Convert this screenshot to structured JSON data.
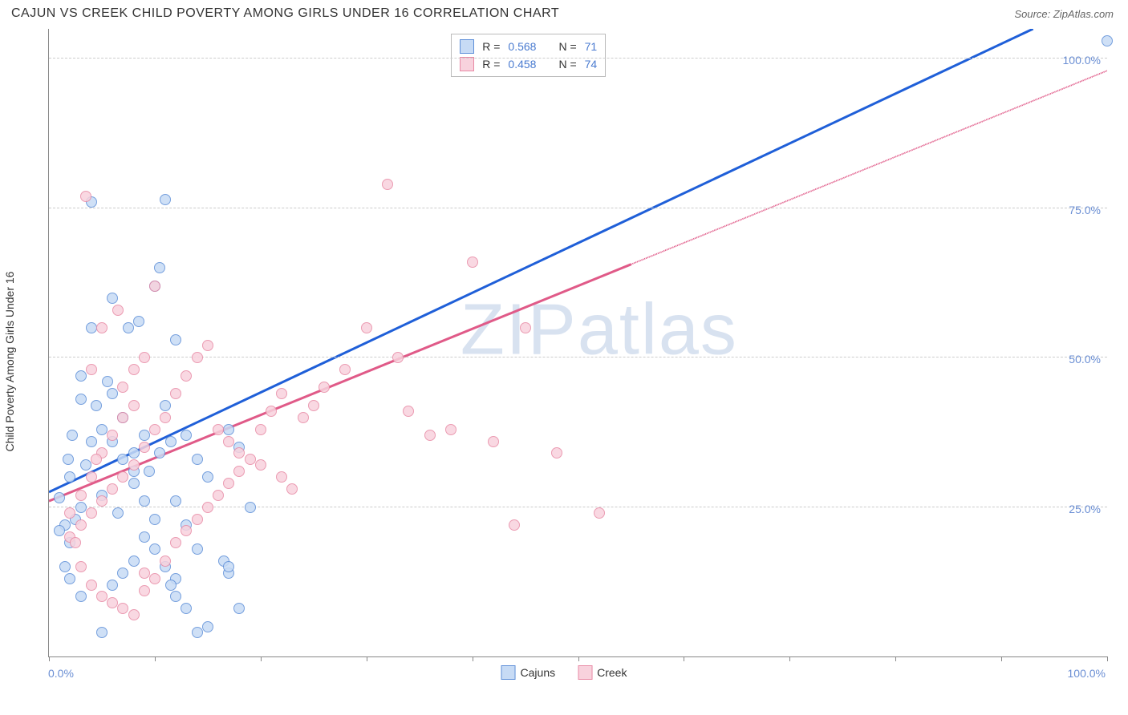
{
  "header": {
    "title": "CAJUN VS CREEK CHILD POVERTY AMONG GIRLS UNDER 16 CORRELATION CHART",
    "source": "Source: ZipAtlas.com"
  },
  "watermark": "ZIPatlas",
  "chart": {
    "type": "scatter",
    "ylabel": "Child Poverty Among Girls Under 16",
    "xlim": [
      0,
      100
    ],
    "ylim": [
      0,
      105
    ],
    "y_ticks": [
      25,
      50,
      75,
      100
    ],
    "y_tick_labels": [
      "25.0%",
      "50.0%",
      "75.0%",
      "100.0%"
    ],
    "x_tick_positions": [
      0,
      10,
      20,
      30,
      40,
      50,
      60,
      70,
      80,
      90,
      100
    ],
    "x_axis_left_label": "0.0%",
    "x_axis_right_label": "100.0%",
    "grid_color": "#cccccc",
    "background_color": "#ffffff",
    "marker_radius": 7,
    "marker_stroke_width": 1.3,
    "series": [
      {
        "name": "Cajuns",
        "fill": "#c7dbf5",
        "stroke": "#5e8fd8",
        "line_color": "#1f5fd8",
        "R": "0.568",
        "N": "71",
        "trend": {
          "x1": 0,
          "y1": 27.5,
          "x2": 93,
          "y2": 105,
          "dashed_after_x": null
        },
        "points": [
          [
            100,
            103
          ],
          [
            1.5,
            22
          ],
          [
            2,
            19
          ],
          [
            2.5,
            23
          ],
          [
            1,
            21
          ],
          [
            3,
            25
          ],
          [
            1,
            26.5
          ],
          [
            4,
            36
          ],
          [
            5,
            38
          ],
          [
            4.5,
            42
          ],
          [
            6,
            44
          ],
          [
            5.5,
            46
          ],
          [
            3,
            47
          ],
          [
            7,
            40
          ],
          [
            8,
            34
          ],
          [
            9,
            37
          ],
          [
            7.5,
            55
          ],
          [
            8.5,
            56
          ],
          [
            10,
            62
          ],
          [
            4,
            76
          ],
          [
            11,
            76.5
          ],
          [
            10.5,
            65
          ],
          [
            12,
            53
          ],
          [
            11,
            42
          ],
          [
            13,
            37
          ],
          [
            14,
            33
          ],
          [
            15,
            30
          ],
          [
            12,
            26
          ],
          [
            13,
            22
          ],
          [
            14,
            18
          ],
          [
            16.5,
            16
          ],
          [
            17,
            14
          ],
          [
            18,
            8
          ],
          [
            5,
            4
          ],
          [
            3,
            10
          ],
          [
            6,
            12
          ],
          [
            7,
            14
          ],
          [
            8,
            16
          ],
          [
            2,
            30
          ],
          [
            3.5,
            32
          ],
          [
            5,
            27
          ],
          [
            6.5,
            24
          ],
          [
            9,
            20
          ],
          [
            10,
            18
          ],
          [
            11,
            15
          ],
          [
            12,
            13
          ],
          [
            8,
            29
          ],
          [
            9.5,
            31
          ],
          [
            10.5,
            34
          ],
          [
            11.5,
            36
          ],
          [
            6,
            60
          ],
          [
            4,
            55
          ],
          [
            3,
            43
          ],
          [
            2.2,
            37
          ],
          [
            1.8,
            33
          ],
          [
            14,
            4
          ],
          [
            15,
            5
          ],
          [
            13,
            8
          ],
          [
            12,
            10
          ],
          [
            11.5,
            12
          ],
          [
            10,
            23
          ],
          [
            9,
            26
          ],
          [
            8,
            31
          ],
          [
            7,
            33
          ],
          [
            6,
            36
          ],
          [
            17,
            38
          ],
          [
            18,
            35
          ],
          [
            17,
            15
          ],
          [
            19,
            25
          ],
          [
            1.5,
            15
          ],
          [
            2,
            13
          ]
        ]
      },
      {
        "name": "Creek",
        "fill": "#f8d2dd",
        "stroke": "#e88aa5",
        "line_color": "#e05a88",
        "R": "0.458",
        "N": "74",
        "trend": {
          "x1": 0,
          "y1": 26,
          "x2": 100,
          "y2": 98,
          "dashed_after_x": 55
        },
        "points": [
          [
            2,
            20
          ],
          [
            3,
            22
          ],
          [
            4,
            24
          ],
          [
            5,
            26
          ],
          [
            6,
            28
          ],
          [
            7,
            30
          ],
          [
            8,
            32
          ],
          [
            9,
            35
          ],
          [
            10,
            38
          ],
          [
            11,
            40
          ],
          [
            12,
            44
          ],
          [
            13,
            47
          ],
          [
            14,
            50
          ],
          [
            15,
            52
          ],
          [
            16,
            38
          ],
          [
            17,
            36
          ],
          [
            18,
            34
          ],
          [
            19,
            33
          ],
          [
            20,
            32
          ],
          [
            22,
            30
          ],
          [
            23,
            28
          ],
          [
            24,
            40
          ],
          [
            25,
            42
          ],
          [
            26,
            45
          ],
          [
            28,
            48
          ],
          [
            30,
            55
          ],
          [
            32,
            79
          ],
          [
            33,
            50
          ],
          [
            34,
            41
          ],
          [
            36,
            37
          ],
          [
            38,
            38
          ],
          [
            40,
            66
          ],
          [
            42,
            36
          ],
          [
            45,
            55
          ],
          [
            48,
            34
          ],
          [
            52,
            24
          ],
          [
            44,
            22
          ],
          [
            3.5,
            77
          ],
          [
            4,
            48
          ],
          [
            5,
            55
          ],
          [
            6.5,
            58
          ],
          [
            2.5,
            19
          ],
          [
            3,
            15
          ],
          [
            4,
            12
          ],
          [
            5,
            10
          ],
          [
            6,
            9
          ],
          [
            7,
            8
          ],
          [
            8,
            7
          ],
          [
            9,
            11
          ],
          [
            10,
            13
          ],
          [
            11,
            16
          ],
          [
            12,
            19
          ],
          [
            13,
            21
          ],
          [
            14,
            23
          ],
          [
            15,
            25
          ],
          [
            16,
            27
          ],
          [
            17,
            29
          ],
          [
            18,
            31
          ],
          [
            7,
            45
          ],
          [
            8,
            48
          ],
          [
            9,
            50
          ],
          [
            10,
            62
          ],
          [
            5,
            34
          ],
          [
            6,
            37
          ],
          [
            7,
            40
          ],
          [
            8,
            42
          ],
          [
            2,
            24
          ],
          [
            3,
            27
          ],
          [
            4,
            30
          ],
          [
            4.5,
            33
          ],
          [
            20,
            38
          ],
          [
            21,
            41
          ],
          [
            22,
            44
          ],
          [
            9,
            14
          ]
        ]
      }
    ]
  },
  "legend": {
    "items": [
      {
        "label": "Cajuns",
        "fill": "#c7dbf5",
        "stroke": "#5e8fd8"
      },
      {
        "label": "Creek",
        "fill": "#f8d2dd",
        "stroke": "#e88aa5"
      }
    ]
  }
}
